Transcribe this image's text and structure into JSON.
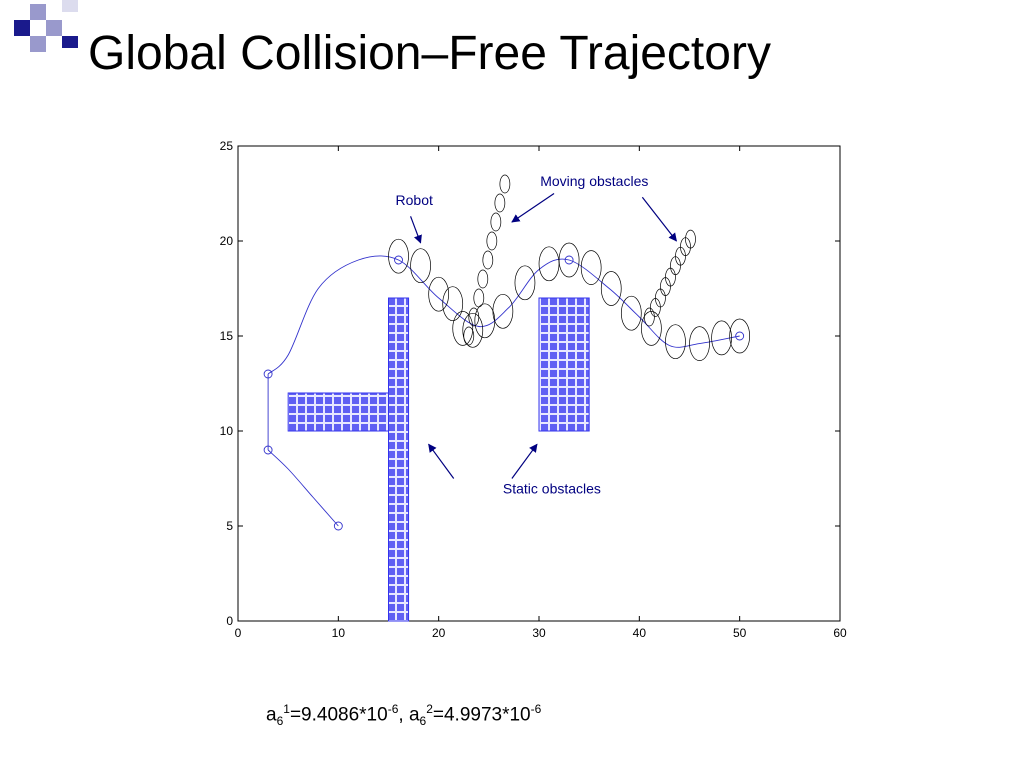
{
  "slide": {
    "title": "Global Collision–Free Trajectory",
    "formula": {
      "a1_base": "a",
      "a1_sub": "6",
      "a1_sup": "1",
      "a1_value": "=9.4086*10",
      "a1_exp": "-6",
      "sep": ", ",
      "a2_base": "a",
      "a2_sub": "6",
      "a2_sup": "2",
      "a2_value": "=4.9973*10",
      "a2_exp": "-6"
    },
    "colors": {
      "accent_dark": "#1a1a8c",
      "accent_light": "#9999cc"
    }
  },
  "chart_data": {
    "type": "scatter",
    "title": "",
    "xlabel": "",
    "ylabel": "",
    "xlim": [
      0,
      60
    ],
    "ylim": [
      0,
      25
    ],
    "xticks": [
      0,
      10,
      20,
      30,
      40,
      50,
      60
    ],
    "yticks": [
      0,
      5,
      10,
      15,
      20,
      25
    ],
    "grid": false,
    "colors": {
      "robot": "#3333cc",
      "obstacle": "#000000",
      "static_fill": "#3333ee",
      "annotation": "#000080"
    },
    "static_obstacles": [
      {
        "x": [
          5,
          16
        ],
        "y": [
          10,
          12
        ]
      },
      {
        "x": [
          15,
          17
        ],
        "y": [
          0,
          17
        ]
      },
      {
        "x": [
          30,
          35
        ],
        "y": [
          10,
          17
        ]
      }
    ],
    "robot_path": [
      {
        "points": [
          [
            3,
            13
          ],
          [
            3,
            9
          ]
        ],
        "shape": "line"
      },
      {
        "points": [
          [
            3,
            9
          ],
          [
            5,
            8
          ],
          [
            7.5,
            6.5
          ],
          [
            10,
            5
          ]
        ],
        "shape": "curve"
      },
      {
        "points": [
          [
            3,
            13
          ],
          [
            5,
            14
          ],
          [
            8,
            17.5
          ],
          [
            12,
            19
          ],
          [
            16,
            19
          ],
          [
            20,
            17
          ],
          [
            24,
            15.5
          ],
          [
            27,
            16.5
          ],
          [
            30,
            18.5
          ],
          [
            33,
            19
          ],
          [
            37,
            17.5
          ],
          [
            40,
            16
          ],
          [
            43,
            14.5
          ],
          [
            46,
            14.6
          ],
          [
            50,
            15
          ]
        ],
        "shape": "curve"
      }
    ],
    "robot_markers": [
      [
        3,
        13
      ],
      [
        3,
        9
      ],
      [
        10,
        5
      ],
      [
        16,
        19
      ],
      [
        33,
        19
      ],
      [
        50,
        15
      ]
    ],
    "robot_footprints": [
      [
        16,
        19.2
      ],
      [
        18.2,
        18.7
      ],
      [
        20,
        17.2
      ],
      [
        21.4,
        16.7
      ],
      [
        22.4,
        15.4
      ],
      [
        23.4,
        15.3
      ],
      [
        24.6,
        15.8
      ],
      [
        26.4,
        16.3
      ],
      [
        28.6,
        17.8
      ],
      [
        31,
        18.8
      ],
      [
        33,
        19
      ],
      [
        35.2,
        18.6
      ],
      [
        37.2,
        17.5
      ],
      [
        39.2,
        16.2
      ],
      [
        41.2,
        15.4
      ],
      [
        43.6,
        14.7
      ],
      [
        46,
        14.6
      ],
      [
        48.2,
        14.9
      ],
      [
        50,
        15
      ]
    ],
    "moving_obstacles": [
      {
        "points": [
          [
            23,
            15
          ],
          [
            23.5,
            16
          ],
          [
            24,
            17
          ],
          [
            24.4,
            18
          ],
          [
            24.9,
            19
          ],
          [
            25.3,
            20
          ],
          [
            25.7,
            21
          ],
          [
            26.1,
            22
          ],
          [
            26.6,
            23
          ]
        ]
      },
      {
        "points": [
          [
            41,
            16
          ],
          [
            41.6,
            16.5
          ],
          [
            42.1,
            17
          ],
          [
            42.6,
            17.6
          ],
          [
            43.1,
            18.1
          ],
          [
            43.6,
            18.7
          ],
          [
            44.1,
            19.2
          ],
          [
            44.6,
            19.7
          ],
          [
            45.1,
            20.1
          ]
        ]
      }
    ],
    "annotations": [
      {
        "text": "Robot",
        "x": 15.7,
        "y": 21.9,
        "arrow_from": [
          17.2,
          21.3
        ],
        "arrow_to": [
          18.2,
          19.9
        ]
      },
      {
        "text": "Moving obstacles",
        "x": 40.9,
        "y": 22.9,
        "arrow_from": [
          31.5,
          22.5
        ],
        "arrow_to": [
          27.3,
          21.0
        ],
        "arrow2_from": [
          40.3,
          22.3
        ],
        "arrow2_to": [
          43.7,
          20.0
        ]
      },
      {
        "text": "Static obstacles",
        "x": 26.4,
        "y": 6.7,
        "arrow_from": [
          21.5,
          7.5
        ],
        "arrow_to": [
          19.0,
          9.3
        ],
        "arrow2_from": [
          27.3,
          7.5
        ],
        "arrow2_to": [
          29.8,
          9.3
        ]
      }
    ]
  }
}
